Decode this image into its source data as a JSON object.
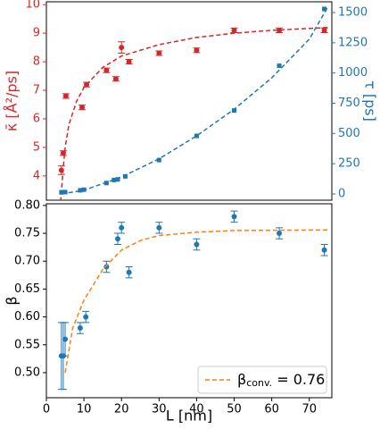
{
  "chart_data": [
    {
      "type": "scatter",
      "ylabel": "κ̄ [Å²/ps]",
      "y2label": "τ [ps]",
      "ylabel_color": "#d62728",
      "y2label_color": "#1f77b4",
      "xlim": [
        0,
        76
      ],
      "ylim": [
        3.15,
        10.1
      ],
      "yticks": [
        4,
        5,
        6,
        7,
        8,
        9,
        10
      ],
      "y2lim": [
        -52,
        1589
      ],
      "y2ticks": [
        0,
        250,
        500,
        750,
        1000,
        1250,
        1500
      ],
      "series": [
        {
          "color": "#d62728",
          "marker": "circle",
          "x": [
            4,
            4.5,
            5.2,
            9.5,
            10.7,
            16,
            18.5,
            20,
            22,
            30,
            40,
            50,
            62,
            74
          ],
          "values": [
            4.2,
            4.8,
            6.8,
            6.4,
            7.2,
            7.7,
            7.4,
            8.5,
            8.0,
            8.3,
            8.4,
            9.1,
            9.1,
            9.1
          ],
          "errors": [
            0.15,
            0.08,
            0.08,
            0.08,
            0.08,
            0.08,
            0.08,
            0.2,
            0.08,
            0.08,
            0.08,
            0.08,
            0.08,
            0.08
          ]
        },
        {
          "color": "#d62728",
          "dashed": true,
          "x": [
            3.8,
            4.5,
            5,
            6,
            8,
            10,
            15,
            20,
            30,
            40,
            50,
            60,
            75
          ],
          "values": [
            3.1,
            4.3,
            5.0,
            5.8,
            6.6,
            7.1,
            7.8,
            8.2,
            8.6,
            8.85,
            9.0,
            9.1,
            9.2
          ]
        },
        {
          "color": "#1f77b4",
          "marker": "square",
          "axis": "y2",
          "x": [
            4,
            4.5,
            5,
            9,
            10,
            16,
            18,
            19,
            21,
            30,
            40,
            50,
            62,
            74
          ],
          "values": [
            13,
            15,
            15,
            30,
            35,
            90,
            115,
            120,
            145,
            280,
            480,
            690,
            1060,
            1530
          ]
        },
        {
          "color": "#1f77b4",
          "dashed": true,
          "axis": "y2",
          "x": [
            4,
            10,
            20,
            30,
            40,
            50,
            60,
            70,
            75
          ],
          "values": [
            0,
            30,
            140,
            290,
            480,
            700,
            960,
            1280,
            1550
          ]
        }
      ]
    },
    {
      "type": "scatter",
      "ylabel": "β",
      "xlabel": "L [nm]",
      "xlim": [
        0,
        76
      ],
      "xticks": [
        0,
        10,
        20,
        30,
        40,
        50,
        60,
        70
      ],
      "ylim": [
        0.455,
        0.803
      ],
      "yticks": [
        {
          "value": 0.5,
          "label": "0.50"
        },
        0.55,
        {
          "value": 0.6,
          "label": "0.60"
        },
        0.65,
        {
          "value": 0.7,
          "label": "0.70"
        },
        0.75,
        {
          "value": 0.8,
          "label": "0.80"
        }
      ],
      "series": [
        {
          "color": "#1f77b4",
          "marker": "circle",
          "x": [
            4,
            4.5,
            5,
            9,
            10.5,
            16,
            19,
            20,
            22,
            30,
            40,
            50,
            62,
            74
          ],
          "values": [
            0.53,
            0.53,
            0.56,
            0.58,
            0.6,
            0.69,
            0.74,
            0.76,
            0.68,
            0.76,
            0.73,
            0.78,
            0.75,
            0.72
          ],
          "errors": [
            0.06,
            0.06,
            0.03,
            0.01,
            0.01,
            0.01,
            0.01,
            0.01,
            0.01,
            0.01,
            0.01,
            0.01,
            0.01,
            0.01
          ]
        },
        {
          "color": "#ff7f0e",
          "dashed": true,
          "name": "β",
          "name_sub": "conv.",
          "name_tail": " = 0.76",
          "x": [
            5,
            7,
            10,
            15,
            20,
            25,
            30,
            40,
            50,
            75
          ],
          "values": [
            0.5,
            0.58,
            0.63,
            0.685,
            0.72,
            0.737,
            0.746,
            0.752,
            0.755,
            0.756
          ]
        }
      ]
    }
  ]
}
